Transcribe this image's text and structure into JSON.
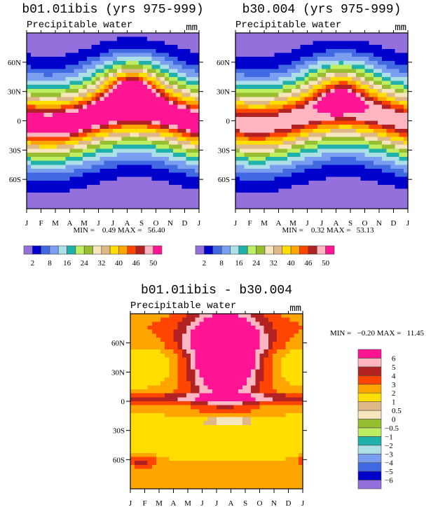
{
  "chart_data": [
    {
      "type": "heatmap",
      "title": "b01.01ibis (yrs 975-999)",
      "subtitle": "Precipitable water",
      "units": "mm",
      "xticks": [
        "J",
        "F",
        "M",
        "A",
        "M",
        "J",
        "J",
        "A",
        "S",
        "O",
        "N",
        "D",
        "J"
      ],
      "yticks": [
        "60N",
        "30N",
        "0",
        "30S",
        "60S"
      ],
      "ytick_values": [
        60,
        30,
        0,
        -30,
        -60
      ],
      "ylim": [
        -90,
        90
      ],
      "minmax": "MIN =    0.49 MAX =   56.40",
      "min": 0.49,
      "max": 56.4,
      "levels": [
        2,
        5,
        8,
        12,
        16,
        20,
        24,
        28,
        32,
        36,
        40,
        43,
        46,
        48,
        50
      ],
      "level_labels": [
        "2",
        "8",
        "16",
        "24",
        "32",
        "40",
        "46",
        "50"
      ],
      "colorbar": "horizontal"
    },
    {
      "type": "heatmap",
      "title": "b30.004 (yrs 975-999)",
      "subtitle": "Precipitable water",
      "units": "mm",
      "xticks": [
        "J",
        "F",
        "M",
        "A",
        "M",
        "J",
        "J",
        "A",
        "S",
        "O",
        "N",
        "D",
        "J"
      ],
      "yticks": [
        "60N",
        "30N",
        "0",
        "30S",
        "60S"
      ],
      "ytick_values": [
        60,
        30,
        0,
        -30,
        -60
      ],
      "ylim": [
        -90,
        90
      ],
      "minmax": "MIN =    0.32 MAX =   53.13",
      "min": 0.32,
      "max": 53.13,
      "levels": [
        2,
        5,
        8,
        12,
        16,
        20,
        24,
        28,
        32,
        36,
        40,
        43,
        46,
        48,
        50
      ],
      "level_labels": [
        "2",
        "8",
        "16",
        "24",
        "32",
        "40",
        "46",
        "50"
      ],
      "colorbar": "horizontal"
    },
    {
      "type": "heatmap",
      "title": "b01.01ibis - b30.004",
      "subtitle": "Precipitable water",
      "units": "mm",
      "xticks": [
        "J",
        "F",
        "M",
        "A",
        "M",
        "J",
        "J",
        "A",
        "S",
        "O",
        "N",
        "D",
        "J"
      ],
      "yticks": [
        "60N",
        "30N",
        "0",
        "30S",
        "60S"
      ],
      "ytick_values": [
        60,
        30,
        0,
        -30,
        -60
      ],
      "ylim": [
        -90,
        90
      ],
      "minmax": "MIN =   −0.20 MAX =   11.45",
      "min": -0.2,
      "max": 11.45,
      "levels": [
        -6,
        -5,
        -4,
        -3,
        -2,
        -1,
        -0.5,
        0,
        0.5,
        1,
        2,
        3,
        4,
        5,
        6
      ],
      "level_labels": [
        "−6",
        "−5",
        "−4",
        "−3",
        "−2",
        "−1",
        "−0.5",
        "0",
        "0.5",
        "1",
        "2",
        "3",
        "4",
        "5",
        "6"
      ],
      "colorbar": "vertical"
    }
  ],
  "colors": [
    "#9370DB",
    "#0000CD",
    "#4169E1",
    "#7B9EF0",
    "#ADDFE6",
    "#20B2AA",
    "#BEEE62",
    "#96BE30",
    "#F5E6BE",
    "#DEB887",
    "#FFDE00",
    "#FFA500",
    "#FF4500",
    "#B22222",
    "#FFB6C1",
    "#FF1493"
  ]
}
